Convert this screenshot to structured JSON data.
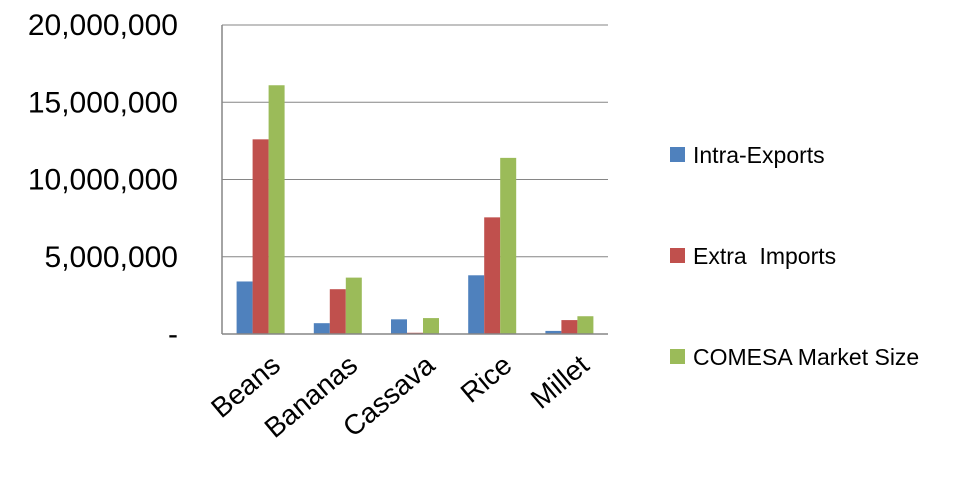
{
  "chart_data": {
    "type": "bar",
    "categories": [
      "Beans",
      "Bananas",
      "Cassava",
      "Rice",
      "Millet"
    ],
    "series": [
      {
        "name": "Intra-Exports",
        "color": "#4F81BD",
        "values": [
          3400000,
          700000,
          950000,
          3800000,
          200000
        ]
      },
      {
        "name": "Extra  Imports",
        "color": "#C0504D",
        "values": [
          12600000,
          2900000,
          80000,
          7550000,
          900000
        ]
      },
      {
        "name": "COMESA Market Size",
        "color": "#9BBB59",
        "values": [
          16100000,
          3650000,
          1030000,
          11400000,
          1150000
        ]
      }
    ],
    "y_ticks": [
      {
        "value": 0,
        "label": "-"
      },
      {
        "value": 5000000,
        "label": "5,000,000"
      },
      {
        "value": 10000000,
        "label": "10,000,000"
      },
      {
        "value": 15000000,
        "label": "15,000,000"
      },
      {
        "value": 20000000,
        "label": "20,000,000"
      }
    ],
    "ylim": [
      0,
      20000000
    ],
    "grid": true,
    "legend_position": "right",
    "title": "",
    "xlabel": "",
    "ylabel": ""
  }
}
